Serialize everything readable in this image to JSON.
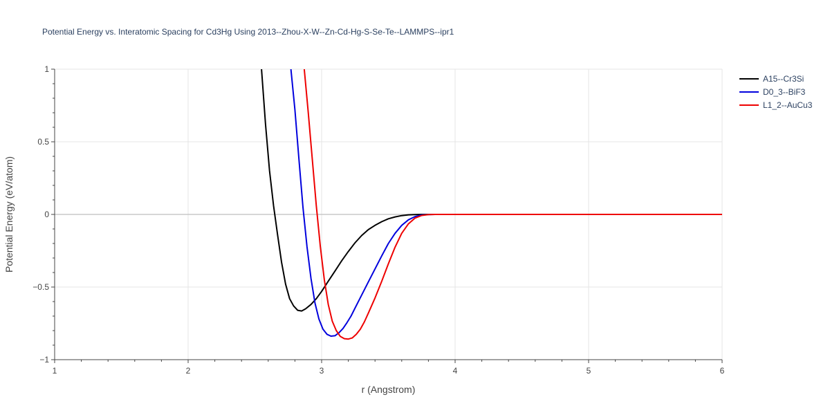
{
  "chart_data": {
    "type": "line",
    "title": "Potential Energy vs. Interatomic Spacing for Cd3Hg Using 2013--Zhou-X-W--Zn-Cd-Hg-S-Se-Te--LAMMPS--ipr1",
    "xlabel": "r (Angstrom)",
    "ylabel": "Potential Energy (eV/atom)",
    "xlim": [
      1,
      6
    ],
    "ylim": [
      -1,
      1
    ],
    "xticks": [
      1,
      2,
      3,
      4,
      5,
      6
    ],
    "xtick_labels": [
      "1",
      "2",
      "3",
      "4",
      "5",
      "6"
    ],
    "yticks": [
      -1,
      -0.5,
      0,
      0.5,
      1
    ],
    "ytick_labels": [
      "−1",
      "−0.5",
      "0",
      "0.5",
      "1"
    ],
    "grid": true,
    "legend_position": "top-right",
    "series": [
      {
        "name": "A15--Cr3Si",
        "color": "#000000",
        "x": [
          2.55,
          2.58,
          2.61,
          2.64,
          2.67,
          2.7,
          2.73,
          2.76,
          2.79,
          2.82,
          2.85,
          2.88,
          2.92,
          2.96,
          3.0,
          3.05,
          3.1,
          3.15,
          3.2,
          3.25,
          3.3,
          3.35,
          3.4,
          3.45,
          3.5,
          3.55,
          3.6,
          3.65,
          3.7,
          3.75,
          3.8,
          3.85,
          4.0,
          5.0,
          6.0
        ],
        "y": [
          1.0,
          0.62,
          0.3,
          0.06,
          -0.14,
          -0.33,
          -0.48,
          -0.58,
          -0.63,
          -0.66,
          -0.665,
          -0.65,
          -0.62,
          -0.58,
          -0.53,
          -0.46,
          -0.39,
          -0.32,
          -0.255,
          -0.195,
          -0.145,
          -0.105,
          -0.075,
          -0.05,
          -0.03,
          -0.017,
          -0.008,
          -0.003,
          -0.001,
          0.0,
          0.0,
          0.0,
          0.0,
          0.0,
          0.0
        ]
      },
      {
        "name": "D0_3--BiF3",
        "color": "#0000dd",
        "x": [
          2.77,
          2.8,
          2.83,
          2.86,
          2.89,
          2.92,
          2.95,
          2.98,
          3.01,
          3.04,
          3.07,
          3.1,
          3.13,
          3.16,
          3.19,
          3.22,
          3.25,
          3.3,
          3.35,
          3.4,
          3.45,
          3.5,
          3.55,
          3.6,
          3.65,
          3.7,
          3.75,
          3.8,
          3.85,
          4.0,
          5.0,
          6.0
        ],
        "y": [
          1.0,
          0.72,
          0.38,
          0.05,
          -0.22,
          -0.44,
          -0.61,
          -0.72,
          -0.79,
          -0.825,
          -0.838,
          -0.835,
          -0.815,
          -0.785,
          -0.745,
          -0.7,
          -0.645,
          -0.555,
          -0.465,
          -0.375,
          -0.285,
          -0.2,
          -0.13,
          -0.075,
          -0.037,
          -0.015,
          -0.004,
          -0.001,
          0.0,
          0.0,
          0.0,
          0.0
        ]
      },
      {
        "name": "L1_2--AuCu3",
        "color": "#ee0000",
        "x": [
          2.87,
          2.9,
          2.93,
          2.96,
          2.99,
          3.02,
          3.05,
          3.08,
          3.11,
          3.14,
          3.17,
          3.2,
          3.23,
          3.26,
          3.29,
          3.32,
          3.35,
          3.4,
          3.45,
          3.5,
          3.55,
          3.6,
          3.65,
          3.7,
          3.75,
          3.8,
          3.85,
          4.0,
          5.0,
          6.0
        ],
        "y": [
          1.0,
          0.7,
          0.38,
          0.06,
          -0.22,
          -0.45,
          -0.62,
          -0.735,
          -0.8,
          -0.84,
          -0.855,
          -0.858,
          -0.85,
          -0.825,
          -0.79,
          -0.74,
          -0.68,
          -0.575,
          -0.46,
          -0.34,
          -0.225,
          -0.13,
          -0.065,
          -0.025,
          -0.007,
          -0.001,
          0.0,
          0.0,
          0.0,
          0.0
        ]
      }
    ]
  }
}
